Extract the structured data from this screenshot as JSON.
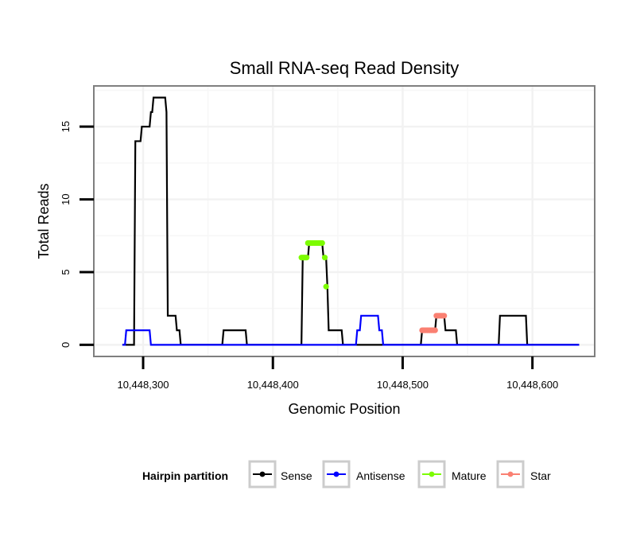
{
  "chart_data": {
    "type": "line",
    "title": "Small RNA-seq Read Density",
    "xlabel": "Genomic Position",
    "ylabel": "Total Reads",
    "xlim": [
      10448262,
      10448648
    ],
    "ylim": [
      -0.8,
      17.8
    ],
    "xticks": [
      {
        "value": 10448300,
        "label": "10,448,300"
      },
      {
        "value": 10448400,
        "label": "10,448,400"
      },
      {
        "value": 10448500,
        "label": "10,448,500"
      },
      {
        "value": 10448600,
        "label": "10,448,600"
      }
    ],
    "yticks": [
      {
        "value": 0,
        "label": "0"
      },
      {
        "value": 5,
        "label": "5"
      },
      {
        "value": 10,
        "label": "10"
      },
      {
        "value": 15,
        "label": "15"
      }
    ],
    "grid": true,
    "legend": {
      "title": "Hairpin partition",
      "position": "bottom",
      "entries": [
        "Sense",
        "Antisense",
        "Mature",
        "Star"
      ]
    },
    "series": [
      {
        "name": "Sense",
        "color": "#000000",
        "mode": "line",
        "x": [
          10448284,
          10448293,
          10448294,
          10448298,
          10448299,
          10448305,
          10448306,
          10448307,
          10448308,
          10448317,
          10448318,
          10448319,
          10448325,
          10448326,
          10448328,
          10448329,
          10448361,
          10448362,
          10448379,
          10448380,
          10448422,
          10448423,
          10448427,
          10448428,
          10448438,
          10448439,
          10448441,
          10448442,
          10448443,
          10448444,
          10448453,
          10448454,
          10448455,
          10448456,
          10448514,
          10448515,
          10448525,
          10448526,
          10448532,
          10448533,
          10448541,
          10448542,
          10448574,
          10448575,
          10448595,
          10448596,
          10448636
        ],
        "y": [
          0,
          0,
          14,
          14,
          15,
          15,
          16,
          16,
          17,
          17,
          16,
          2,
          2,
          1,
          1,
          0,
          0,
          1,
          1,
          0,
          0,
          6,
          6,
          7,
          7,
          6,
          6,
          4,
          1,
          1,
          1,
          0,
          0,
          0,
          0,
          1,
          1,
          2,
          2,
          1,
          1,
          0,
          0,
          2,
          2,
          0,
          0
        ]
      },
      {
        "name": "Antisense",
        "color": "#0000ff",
        "mode": "line",
        "x": [
          10448284,
          10448286,
          10448287,
          10448305,
          10448306,
          10448464,
          10448465,
          10448467,
          10448468,
          10448481,
          10448482,
          10448484,
          10448485,
          10448636
        ],
        "y": [
          0,
          0,
          1,
          1,
          0,
          0,
          1,
          1,
          2,
          2,
          1,
          1,
          0,
          0
        ]
      },
      {
        "name": "Mature",
        "color": "#7cfc00",
        "mode": "points",
        "x": [
          10448422,
          10448423,
          10448424,
          10448425,
          10448426,
          10448427,
          10448428,
          10448429,
          10448430,
          10448431,
          10448432,
          10448433,
          10448434,
          10448435,
          10448436,
          10448437,
          10448438,
          10448440,
          10448441
        ],
        "y": [
          6,
          6,
          6,
          6,
          6,
          7,
          7,
          7,
          7,
          7,
          7,
          7,
          7,
          7,
          7,
          7,
          7,
          6,
          4
        ]
      },
      {
        "name": "Star",
        "color": "#fa8072",
        "mode": "points",
        "x": [
          10448515,
          10448516,
          10448517,
          10448518,
          10448519,
          10448520,
          10448521,
          10448522,
          10448523,
          10448524,
          10448525,
          10448526,
          10448527,
          10448528,
          10448529,
          10448530,
          10448531,
          10448532
        ],
        "y": [
          1,
          1,
          1,
          1,
          1,
          1,
          1,
          1,
          1,
          1,
          1,
          2,
          2,
          2,
          2,
          2,
          2,
          2
        ]
      }
    ]
  }
}
